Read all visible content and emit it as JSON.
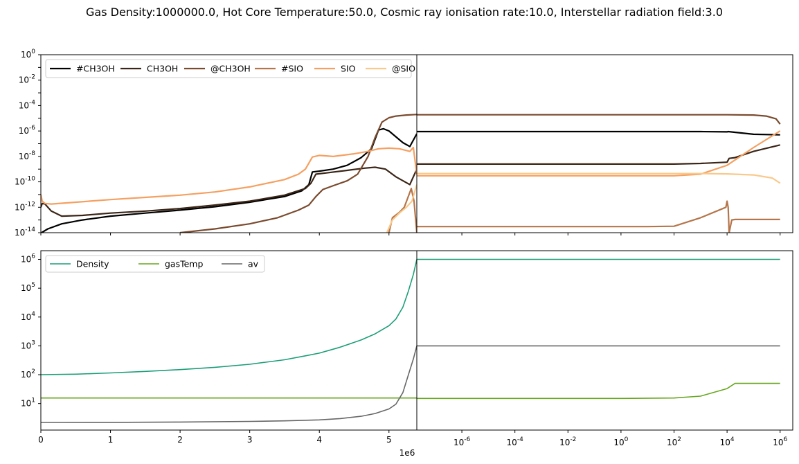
{
  "title": "Gas Density:1000000.0, Hot Core Temperature:50.0, Cosmic ray ionisation rate:10.0, Interstellar radiation field:3.0",
  "chart_data": [
    {
      "type": "line",
      "panel": "abundance-vs-time-linear",
      "x_scale": "linear",
      "y_scale": "log",
      "xlim": [
        0,
        5400000
      ],
      "ylim": [
        1e-14,
        1
      ],
      "yticks": [
        "10^0",
        "10^-2",
        "10^-4",
        "10^-6",
        "10^-8",
        "10^-10",
        "10^-12",
        "10^-14"
      ],
      "legend": "top-left",
      "series": [
        {
          "name": "#CH3OH",
          "color": "#000000",
          "width": 2.2,
          "points": [
            [
              10000,
              1e-14
            ],
            [
              100000,
              2e-14
            ],
            [
              300000,
              5e-14
            ],
            [
              600000,
              1e-13
            ],
            [
              1000000,
              2e-13
            ],
            [
              1500000,
              3.5e-13
            ],
            [
              2000000,
              6e-13
            ],
            [
              2500000,
              1.1e-12
            ],
            [
              3000000,
              2.5e-12
            ],
            [
              3500000,
              7e-12
            ],
            [
              3750000,
              2e-11
            ],
            [
              3850000,
              6e-11
            ],
            [
              3900000,
              6e-10
            ],
            [
              4000000,
              7e-10
            ],
            [
              4200000,
              1e-09
            ],
            [
              4400000,
              2e-09
            ],
            [
              4600000,
              8e-09
            ],
            [
              4750000,
              4e-08
            ],
            [
              4850000,
              1.2e-06
            ],
            [
              4920000,
              1.5e-06
            ],
            [
              5000000,
              1e-06
            ],
            [
              5200000,
              1.2e-07
            ],
            [
              5300000,
              6e-08
            ],
            [
              5400000,
              6e-07
            ]
          ]
        },
        {
          "name": "CH3OH",
          "color": "#3b2517",
          "width": 2.2,
          "points": [
            [
              0,
              1e-12
            ],
            [
              20000,
              2e-12
            ],
            [
              60000,
              1.8e-12
            ],
            [
              150000,
              5e-13
            ],
            [
              300000,
              2e-13
            ],
            [
              600000,
              2.3e-13
            ],
            [
              1000000,
              3.5e-13
            ],
            [
              1500000,
              5e-13
            ],
            [
              2000000,
              8e-13
            ],
            [
              2500000,
              1.5e-12
            ],
            [
              3000000,
              3e-12
            ],
            [
              3500000,
              9e-12
            ],
            [
              3800000,
              3e-11
            ],
            [
              3880000,
              8e-11
            ],
            [
              3950000,
              4e-10
            ],
            [
              4100000,
              5e-10
            ],
            [
              4400000,
              8e-10
            ],
            [
              4650000,
              1.2e-09
            ],
            [
              4800000,
              1.4e-09
            ],
            [
              4950000,
              1e-09
            ],
            [
              5100000,
              2.5e-10
            ],
            [
              5300000,
              6e-11
            ],
            [
              5400000,
              1e-09
            ]
          ]
        },
        {
          "name": "@CH3OH",
          "color": "#7a4a2e",
          "width": 2.2,
          "points": [
            [
              2000000,
              1e-14
            ],
            [
              2500000,
              2e-14
            ],
            [
              3000000,
              5e-14
            ],
            [
              3400000,
              1.5e-13
            ],
            [
              3700000,
              6e-13
            ],
            [
              3850000,
              1.5e-12
            ],
            [
              3950000,
              7e-12
            ],
            [
              4050000,
              2.5e-11
            ],
            [
              4200000,
              5e-11
            ],
            [
              4400000,
              1.2e-10
            ],
            [
              4550000,
              4e-10
            ],
            [
              4700000,
              1e-08
            ],
            [
              4800000,
              3e-07
            ],
            [
              4900000,
              5e-06
            ],
            [
              5000000,
              1.1e-05
            ],
            [
              5100000,
              1.5e-05
            ],
            [
              5250000,
              1.8e-05
            ],
            [
              5400000,
              2e-05
            ]
          ]
        },
        {
          "name": "#SIO",
          "color": "#b5754a",
          "width": 2.2,
          "points": [
            [
              5000000,
              1e-14
            ],
            [
              5050000,
              1.5e-13
            ],
            [
              5150000,
              4e-13
            ],
            [
              5220000,
              1e-12
            ],
            [
              5320000,
              3e-11
            ],
            [
              5360000,
              3e-12
            ],
            [
              5400000,
              1e-14
            ]
          ]
        },
        {
          "name": "SIO",
          "color": "#f5a061",
          "width": 2.2,
          "points": [
            [
              0,
              1e-11
            ],
            [
              20000,
              3e-12
            ],
            [
              60000,
              2e-12
            ],
            [
              150000,
              1.8e-12
            ],
            [
              500000,
              2.5e-12
            ],
            [
              1000000,
              4e-12
            ],
            [
              1500000,
              6e-12
            ],
            [
              2000000,
              9e-12
            ],
            [
              2500000,
              1.6e-11
            ],
            [
              3000000,
              4e-11
            ],
            [
              3500000,
              1.5e-10
            ],
            [
              3700000,
              4e-10
            ],
            [
              3800000,
              1e-09
            ],
            [
              3900000,
              9e-09
            ],
            [
              4000000,
              1.2e-08
            ],
            [
              4200000,
              1e-08
            ],
            [
              4500000,
              1.6e-08
            ],
            [
              4700000,
              2.5e-08
            ],
            [
              4850000,
              4e-08
            ],
            [
              5000000,
              4.5e-08
            ],
            [
              5150000,
              4e-08
            ],
            [
              5300000,
              2.5e-08
            ],
            [
              5350000,
              5e-08
            ],
            [
              5400000,
              4e-10
            ]
          ]
        },
        {
          "name": "@SIO",
          "color": "#f9c98b",
          "width": 2.2,
          "points": [
            [
              4970000,
              1e-14
            ],
            [
              5050000,
              1e-13
            ],
            [
              5150000,
              3.5e-13
            ],
            [
              5250000,
              1e-12
            ],
            [
              5330000,
              3e-12
            ],
            [
              5400000,
              6e-11
            ]
          ]
        }
      ]
    },
    {
      "type": "line",
      "panel": "abundance-vs-time-log",
      "x_scale": "log",
      "y_scale": "log",
      "xlim": [
        2e-08,
        3000000.0
      ],
      "ylim": [
        1e-14,
        1
      ],
      "series": [
        {
          "name": "#CH3OH",
          "color": "#000000",
          "width": 2.2,
          "points": [
            [
              2e-08,
              9e-07
            ],
            [
              1000,
              9e-07
            ],
            [
              10000,
              8.5e-07
            ],
            [
              11000,
              9e-07
            ],
            [
              100000,
              5.5e-07
            ],
            [
              1000000,
              5e-07
            ]
          ]
        },
        {
          "name": "CH3OH",
          "color": "#3b2517",
          "width": 2.2,
          "points": [
            [
              2e-08,
              2.5e-09
            ],
            [
              100,
              2.5e-09
            ],
            [
              1000,
              2.8e-09
            ],
            [
              10000,
              3.5e-09
            ],
            [
              12000,
              7e-09
            ],
            [
              20000,
              8e-09
            ],
            [
              100000,
              2.5e-08
            ],
            [
              1000000,
              8e-08
            ]
          ]
        },
        {
          "name": "@CH3OH",
          "color": "#7a4a2e",
          "width": 2.2,
          "points": [
            [
              2e-08,
              1.9e-05
            ],
            [
              10000,
              1.9e-05
            ],
            [
              100000,
              1.8e-05
            ],
            [
              300000,
              1.5e-05
            ],
            [
              700000,
              9e-06
            ],
            [
              1000000,
              3.5e-06
            ]
          ]
        },
        {
          "name": "#SIO",
          "color": "#b5754a",
          "width": 2.2,
          "points": [
            [
              2e-08,
              3e-14
            ],
            [
              10,
              3e-14
            ],
            [
              100,
              3.2e-14
            ],
            [
              1000,
              1.5e-13
            ],
            [
              9000,
              1e-12
            ],
            [
              10000,
              3e-12
            ],
            [
              11000,
              1e-12
            ],
            [
              12000,
              1e-14
            ],
            [
              15000,
              1e-13
            ],
            [
              20000,
              1.1e-13
            ],
            [
              1000000,
              1.1e-13
            ]
          ]
        },
        {
          "name": "SIO",
          "color": "#f5a061",
          "width": 2.2,
          "points": [
            [
              2e-08,
              3e-10
            ],
            [
              100,
              3e-10
            ],
            [
              1000,
              4e-10
            ],
            [
              10000,
              2e-09
            ],
            [
              100000,
              5e-08
            ],
            [
              1000000,
              1e-06
            ]
          ]
        },
        {
          "name": "@SIO",
          "color": "#f9c98b",
          "width": 2.2,
          "points": [
            [
              2e-08,
              4.5e-10
            ],
            [
              1000,
              4.5e-10
            ],
            [
              10000,
              4.2e-10
            ],
            [
              100000,
              3.5e-10
            ],
            [
              500000,
              2e-10
            ],
            [
              1000000,
              8e-11
            ]
          ]
        }
      ]
    },
    {
      "type": "line",
      "panel": "physics-vs-time-linear",
      "x_scale": "linear",
      "y_scale": "log",
      "xlim": [
        0,
        5400000
      ],
      "ylim": [
        1.2,
        2000000.0
      ],
      "x_offset_label": "1e6",
      "xticks": [
        0,
        1000000,
        2000000,
        3000000,
        4000000,
        5000000
      ],
      "xtick_labels": [
        "0",
        "1",
        "2",
        "3",
        "4",
        "5"
      ],
      "yticks": [
        "10^1",
        "10^2",
        "10^3",
        "10^4",
        "10^5",
        "10^6"
      ],
      "legend": "top-left",
      "series": [
        {
          "name": "Density",
          "color": "#1b9e77",
          "width": 1.6,
          "points": [
            [
              0,
              100
            ],
            [
              500000,
              104
            ],
            [
              1000000,
              115
            ],
            [
              1500000,
              130
            ],
            [
              2000000,
              150
            ],
            [
              2500000,
              180
            ],
            [
              3000000,
              230
            ],
            [
              3500000,
              330
            ],
            [
              3800000,
              450
            ],
            [
              4000000,
              560
            ],
            [
              4300000,
              900
            ],
            [
              4600000,
              1600
            ],
            [
              4800000,
              2600
            ],
            [
              5000000,
              5000
            ],
            [
              5100000,
              8500
            ],
            [
              5200000,
              22000
            ],
            [
              5280000,
              80000
            ],
            [
              5350000,
              300000
            ],
            [
              5400000,
              1000000
            ]
          ]
        },
        {
          "name": "gasTemp",
          "color": "#66a61e",
          "width": 1.6,
          "points": [
            [
              0,
              15.5
            ],
            [
              5400000,
              15.5
            ]
          ]
        },
        {
          "name": "av",
          "color": "#666666",
          "width": 1.6,
          "points": [
            [
              0,
              2.2
            ],
            [
              1000000,
              2.22
            ],
            [
              2000000,
              2.28
            ],
            [
              3000000,
              2.4
            ],
            [
              3500000,
              2.5
            ],
            [
              4000000,
              2.7
            ],
            [
              4300000,
              3.0
            ],
            [
              4600000,
              3.6
            ],
            [
              4800000,
              4.5
            ],
            [
              5000000,
              6.5
            ],
            [
              5100000,
              9.5
            ],
            [
              5200000,
              24
            ],
            [
              5280000,
              100
            ],
            [
              5350000,
              350
            ],
            [
              5400000,
              1000
            ]
          ]
        }
      ]
    },
    {
      "type": "line",
      "panel": "physics-vs-time-log",
      "x_scale": "log",
      "y_scale": "log",
      "xlim": [
        2e-08,
        3000000.0
      ],
      "ylim": [
        1.2,
        2000000.0
      ],
      "xticks": [
        1e-06,
        0.0001,
        0.01,
        1,
        100,
        10000,
        1000000
      ],
      "xtick_labels": [
        "10^-6",
        "10^-4",
        "10^-2",
        "10^0",
        "10^2",
        "10^4",
        "10^6"
      ],
      "series": [
        {
          "name": "Density",
          "color": "#1b9e77",
          "width": 1.6,
          "points": [
            [
              2e-08,
              1000000
            ],
            [
              1000000,
              1000000
            ]
          ]
        },
        {
          "name": "gasTemp",
          "color": "#66a61e",
          "width": 1.6,
          "points": [
            [
              2e-08,
              15
            ],
            [
              1,
              15
            ],
            [
              100,
              15.5
            ],
            [
              1000,
              18
            ],
            [
              10000,
              33
            ],
            [
              20000,
              50
            ],
            [
              1000000,
              50
            ]
          ]
        },
        {
          "name": "av",
          "color": "#666666",
          "width": 1.6,
          "points": [
            [
              2e-08,
              1000
            ],
            [
              1000000,
              1000
            ]
          ]
        }
      ]
    }
  ],
  "legend_top": [
    "#CH3OH",
    "CH3OH",
    "@CH3OH",
    "#SIO",
    "SIO",
    "@SIO"
  ],
  "legend_bottom": [
    "Density",
    "gasTemp",
    "av"
  ]
}
